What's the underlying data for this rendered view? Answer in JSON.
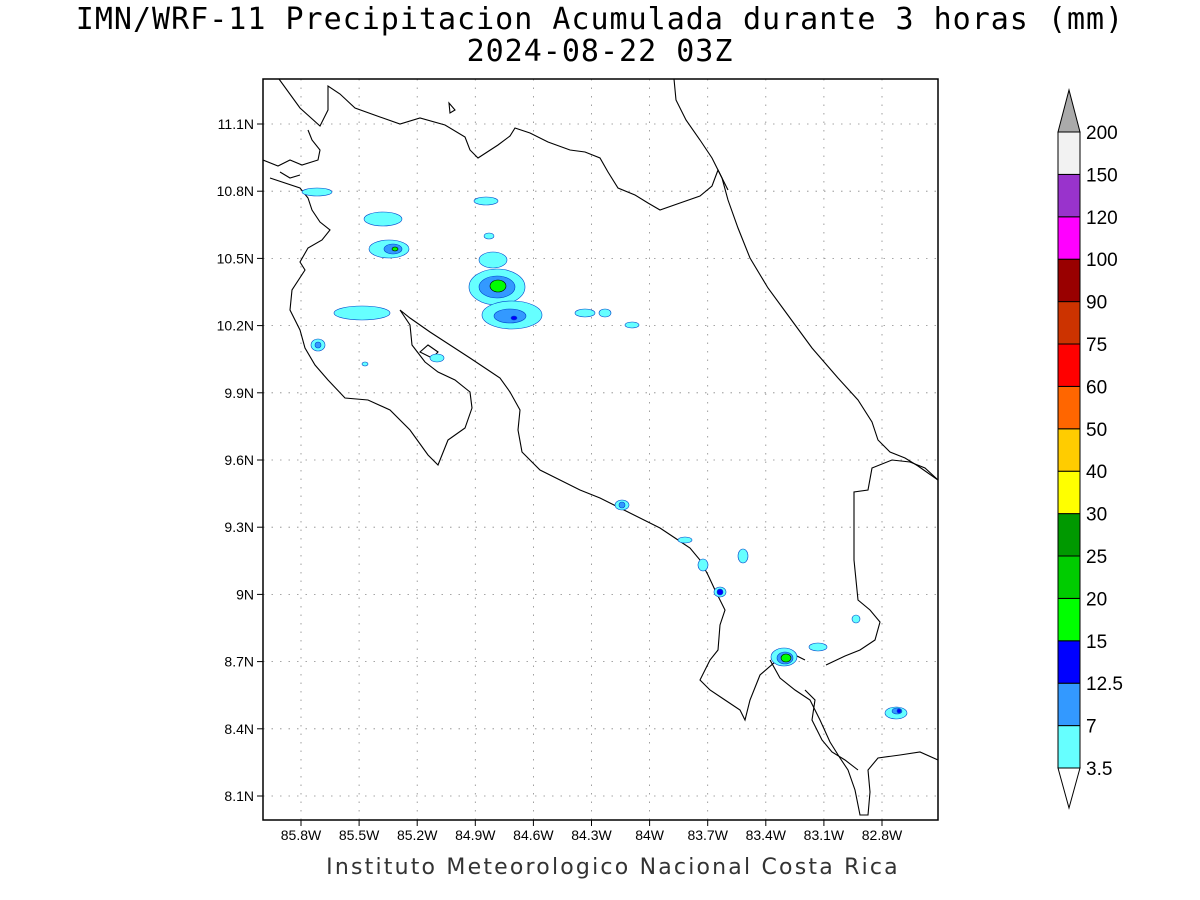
{
  "map": {
    "title": "IMN/WRF-11 Precipitacion Acumulada durante 3 horas (mm)",
    "subtitle": "2024-08-22 03Z",
    "credit": "Instituto Meteorologico Nacional Costa Rica",
    "lat_labels": [
      "11.1N",
      "10.8N",
      "10.5N",
      "10.2N",
      "9.9N",
      "9.6N",
      "9.3N",
      "9N",
      "8.7N",
      "8.4N",
      "8.1N"
    ],
    "lon_labels": [
      "85.8W",
      "85.5W",
      "85.2W",
      "84.9W",
      "84.6W",
      "84.3W",
      "84W",
      "83.7W",
      "83.4W",
      "83.1W",
      "82.8W"
    ]
  },
  "colorbar": {
    "levels": [
      "3.5",
      "7",
      "12.5",
      "15",
      "20",
      "25",
      "30",
      "40",
      "50",
      "60",
      "75",
      "90",
      "100",
      "120",
      "150",
      "200"
    ],
    "colors": [
      "#ffffff",
      "#66ffff",
      "#3399ff",
      "#0000ff",
      "#00ff00",
      "#00cc00",
      "#009900",
      "#ffff00",
      "#ffcc00",
      "#ff6600",
      "#ff0000",
      "#cc3300",
      "#990000",
      "#ff00ff",
      "#9933cc",
      "#f2f2f2",
      "#aaaaaa"
    ]
  }
}
